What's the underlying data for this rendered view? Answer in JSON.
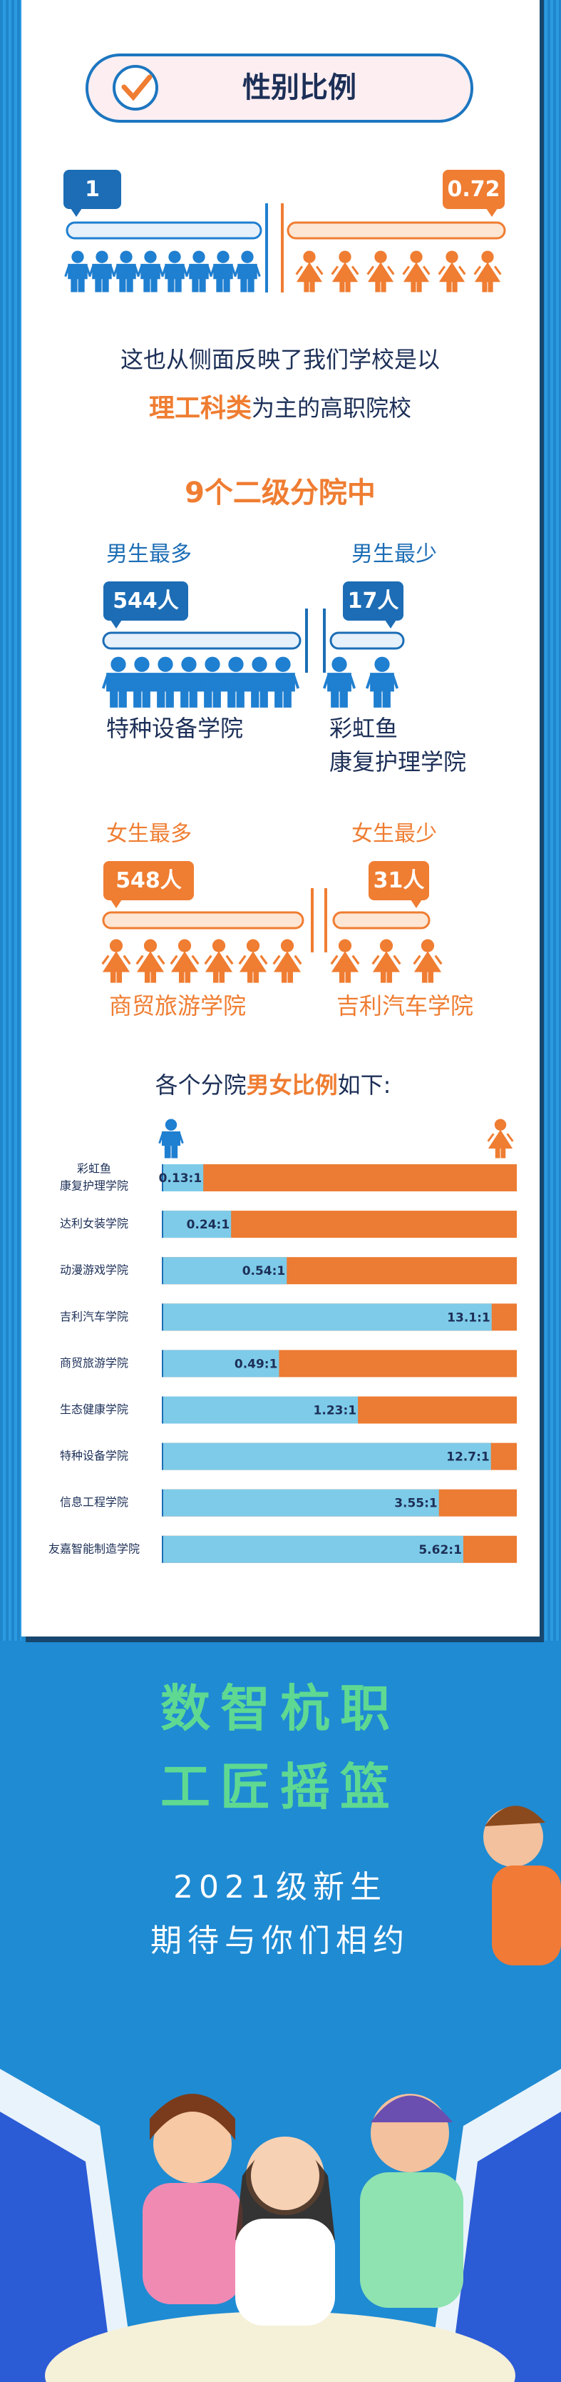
{
  "header": {
    "title": "性别比例"
  },
  "overall": {
    "male": 1,
    "female": 0.72
  },
  "intro": {
    "line1": "这也从侧面反映了我们学校是以",
    "highlight": "理工科类",
    "line2_rest": "为主的高职院校"
  },
  "subheading": "9个二级分院中",
  "male": {
    "most": {
      "label": "男生最多",
      "count": "544人",
      "college": [
        "特种设备学院"
      ]
    },
    "least": {
      "label": "男生最少",
      "count": "17人",
      "college": [
        "彩虹鱼",
        "康复护理学院"
      ]
    }
  },
  "female": {
    "most": {
      "label": "女生最多",
      "count": "548人",
      "college": [
        "商贸旅游学院"
      ]
    },
    "least": {
      "label": "女生最少",
      "count": "31人",
      "college": [
        "吉利汽车学院"
      ]
    }
  },
  "ratio_heading": {
    "prefix": "各个分院",
    "highlight": "男女比例",
    "suffix": "如下:"
  },
  "ratio_chart": {
    "categories": [
      [
        "彩虹鱼",
        "康复护理学院"
      ],
      [
        "达利女装学院"
      ],
      [
        "动漫游戏学院"
      ],
      [
        "吉利汽车学院"
      ],
      [
        "商贸旅游学院"
      ],
      [
        "生态健康学院"
      ],
      [
        "特种设备学院"
      ],
      [
        "信息工程学院"
      ],
      [
        "友嘉智能制造学院"
      ]
    ],
    "values": [
      0.13,
      0.24,
      0.54,
      13.1,
      0.49,
      1.23,
      12.7,
      3.55,
      5.62
    ],
    "value_labels": [
      "0.13:1",
      "0.24:1",
      "0.54:1",
      "13.1:1",
      "0.49:1",
      "1.23:1",
      "12.7:1",
      "3.55:1",
      "5.62:1"
    ]
  },
  "footer": {
    "slogan": [
      "数智杭职",
      "工匠摇篮"
    ],
    "greeting": [
      "2021级新生",
      "期待与你们相约"
    ]
  }
}
